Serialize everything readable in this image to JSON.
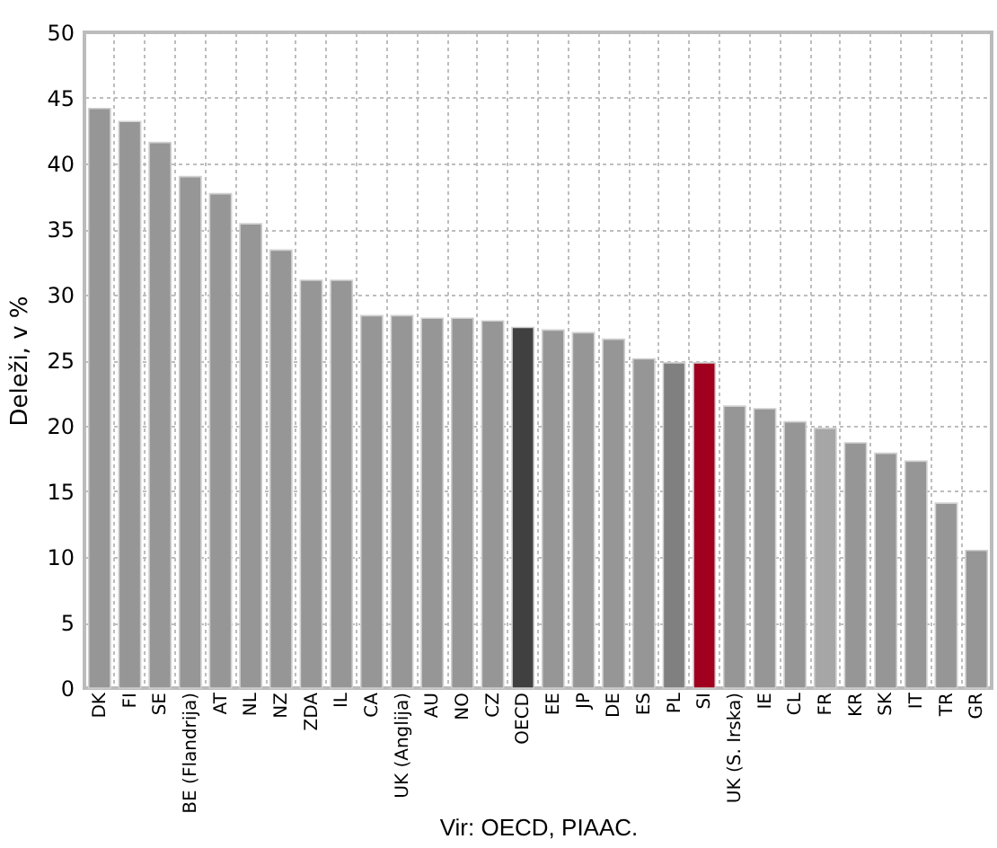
{
  "chart_data": {
    "type": "bar",
    "ylabel": "Deleži, v %",
    "annotations": [
      "Vir: OECD, PIAAC."
    ],
    "categories": [
      "DK",
      "FI",
      "SE",
      "BE (Flandrija)",
      "AT",
      "NL",
      "NZ",
      "ZDA",
      "IL",
      "CA",
      "UK (Anglija)",
      "AU",
      "NO",
      "CZ",
      "OECD",
      "EE",
      "JP",
      "DE",
      "ES",
      "PL",
      "SI",
      "UK (S. Irska)",
      "IE",
      "CL",
      "FR",
      "KR",
      "SK",
      "IT",
      "TR",
      "GR"
    ],
    "values": [
      44.2,
      43.2,
      41.6,
      39.0,
      37.7,
      35.4,
      33.4,
      31.1,
      31.1,
      28.4,
      28.4,
      28.2,
      28.2,
      28.0,
      27.5,
      27.3,
      27.1,
      26.6,
      25.1,
      24.8,
      24.8,
      21.5,
      21.3,
      20.3,
      19.8,
      18.7,
      17.9,
      17.3,
      14.1,
      10.5
    ],
    "colors": [
      "#969696",
      "#969696",
      "#969696",
      "#969696",
      "#969696",
      "#969696",
      "#969696",
      "#969696",
      "#969696",
      "#969696",
      "#969696",
      "#969696",
      "#969696",
      "#969696",
      "#404040",
      "#969696",
      "#969696",
      "#969696",
      "#969696",
      "#808080",
      "#a0001e",
      "#969696",
      "#969696",
      "#969696",
      "#a6a6a6",
      "#969696",
      "#969696",
      "#969696",
      "#969696",
      "#969696"
    ],
    "ylim": [
      0,
      50
    ],
    "yticks": [
      0,
      5,
      10,
      15,
      20,
      25,
      30,
      35,
      40,
      45,
      50
    ],
    "grid": true
  }
}
